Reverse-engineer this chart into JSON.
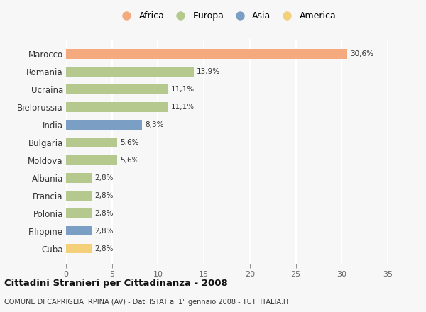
{
  "countries": [
    "Marocco",
    "Romania",
    "Ucraina",
    "Bielorussia",
    "India",
    "Bulgaria",
    "Moldova",
    "Albania",
    "Francia",
    "Polonia",
    "Filippine",
    "Cuba"
  ],
  "values": [
    30.6,
    13.9,
    11.1,
    11.1,
    8.3,
    5.6,
    5.6,
    2.8,
    2.8,
    2.8,
    2.8,
    2.8
  ],
  "labels": [
    "30,6%",
    "13,9%",
    "11,1%",
    "11,1%",
    "8,3%",
    "5,6%",
    "5,6%",
    "2,8%",
    "2,8%",
    "2,8%",
    "2,8%",
    "2,8%"
  ],
  "continents": [
    "Africa",
    "Europa",
    "Europa",
    "Europa",
    "Asia",
    "Europa",
    "Europa",
    "Europa",
    "Europa",
    "Europa",
    "Asia",
    "America"
  ],
  "colors": {
    "Africa": "#F4A97F",
    "Europa": "#B5C98E",
    "Asia": "#7B9EC4",
    "America": "#F5D07A"
  },
  "legend_order": [
    "Africa",
    "Europa",
    "Asia",
    "America"
  ],
  "xlim": [
    0,
    35
  ],
  "xticks": [
    0,
    5,
    10,
    15,
    20,
    25,
    30,
    35
  ],
  "title": "Cittadini Stranieri per Cittadinanza - 2008",
  "subtitle": "COMUNE DI CAPRIGLIA IRPINA (AV) - Dati ISTAT al 1° gennaio 2008 - TUTTITALIA.IT",
  "bg_color": "#f7f7f7",
  "grid_color": "#ffffff",
  "bar_height": 0.55
}
